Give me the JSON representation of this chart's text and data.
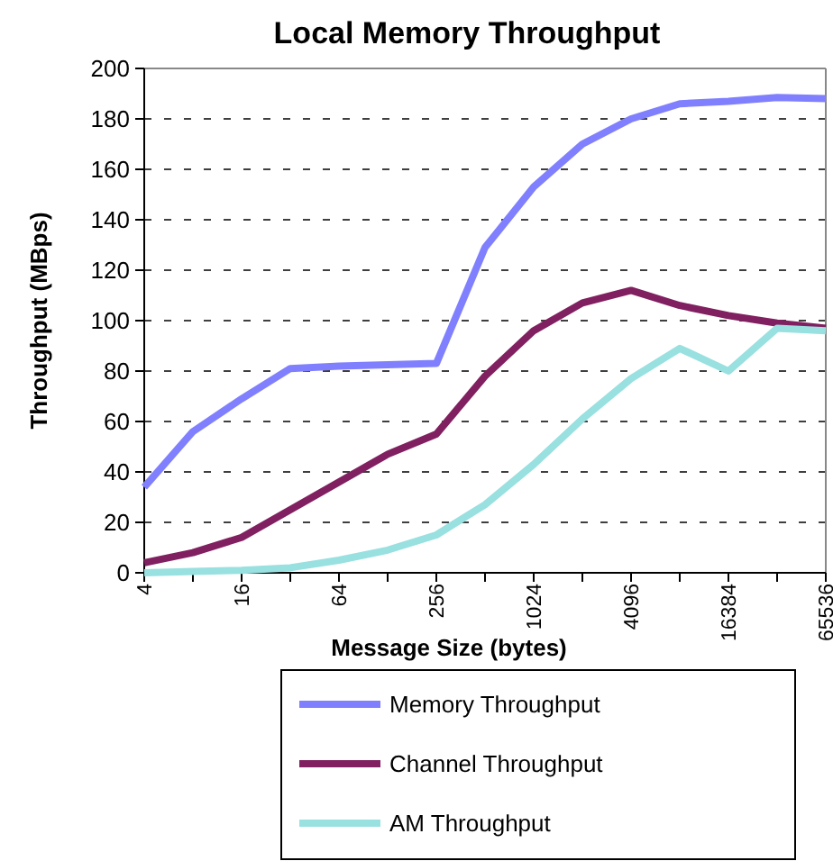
{
  "chart_data": {
    "type": "line",
    "title": "Local Memory Throughput",
    "xlabel": "Message Size (bytes)",
    "ylabel": "Throughput (MBps)",
    "categories": [
      "4",
      null,
      "16",
      null,
      "64",
      null,
      "256",
      null,
      "1024",
      null,
      "4096",
      null,
      "16384",
      null,
      "65536"
    ],
    "series": [
      {
        "name": "Memory Throughput",
        "color": "#8080ff",
        "values": [
          34,
          56,
          69,
          81,
          82,
          82.5,
          83,
          129,
          153,
          170,
          180,
          186,
          187,
          188.5,
          188
        ]
      },
      {
        "name": "Channel Throughput",
        "color": "#802060",
        "values": [
          4,
          8,
          14,
          25,
          36,
          47,
          55,
          78,
          96,
          107,
          112,
          106,
          102,
          99,
          97
        ]
      },
      {
        "name": "AM Throughput",
        "color": "#99e0e0",
        "values": [
          0,
          0.5,
          1,
          2,
          5,
          9,
          15,
          27,
          43,
          61,
          77,
          89,
          80,
          97,
          96
        ]
      }
    ],
    "ylim": [
      0,
      200
    ],
    "yticks": [
      0,
      20,
      40,
      60,
      80,
      100,
      120,
      140,
      160,
      180,
      200
    ],
    "grid": "y",
    "legend": "bottom",
    "marker": "none",
    "line_style": "solid"
  }
}
